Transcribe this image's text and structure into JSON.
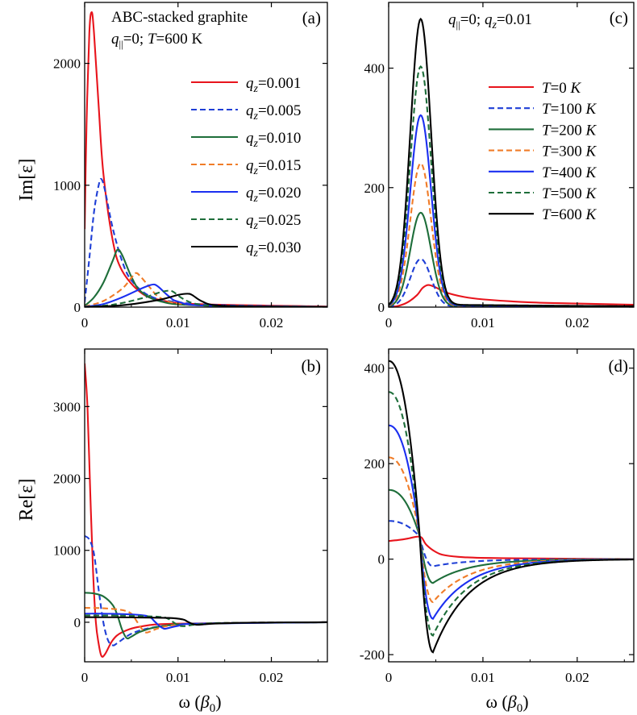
{
  "figure": {
    "xlabel_main": "ω (",
    "xlabel_sym": "β",
    "xlabel_sub": "0",
    "xlabel_close": ")",
    "ylabel_top": "Im[ε]",
    "ylabel_bottom": "Re[ε]"
  },
  "panels": {
    "a": {
      "label": "(a)",
      "title": "ABC-stacked graphite",
      "cond_q": "q",
      "cond_q_sub": "||",
      "cond_rest1": "=0; ",
      "cond_T": "T",
      "cond_rest2": "=600 K",
      "legend_prefix": "q",
      "legend_sub": "z"
    },
    "b": {
      "label": "(b)"
    },
    "c": {
      "label": "(c)",
      "cond_q": "q",
      "cond_q_sub": "||",
      "cond_mid": "=0; ",
      "cond_qz": "q",
      "cond_qz_sub": "z",
      "cond_val": "=0.01",
      "legend_prefix": "T"
    },
    "d": {
      "label": "(d)"
    }
  },
  "chart_data": [
    {
      "panel": "a",
      "type": "line",
      "xlabel": "",
      "ylabel": "Im[ε]",
      "xlim": [
        0,
        0.026
      ],
      "ylim": [
        0,
        2500
      ],
      "xticks": [
        0,
        0.01,
        0.02
      ],
      "xticklabels": [
        "0",
        "0.01",
        "0.02"
      ],
      "yticks": [
        0,
        1000,
        2000
      ],
      "yticklabels": [
        "0",
        "1000",
        "2000"
      ],
      "legend_position": "center-right",
      "series": [
        {
          "name": "=0.001",
          "color": "#e8141c",
          "dash": "solid",
          "points": [
            [
              0,
              640
            ],
            [
              0.0002,
              1500
            ],
            [
              0.0005,
              2250
            ],
            [
              0.00075,
              2420
            ],
            [
              0.001,
              2250
            ],
            [
              0.0015,
              1650
            ],
            [
              0.002,
              1100
            ],
            [
              0.003,
              550
            ],
            [
              0.004,
              300
            ],
            [
              0.006,
              120
            ],
            [
              0.008,
              60
            ],
            [
              0.012,
              25
            ],
            [
              0.026,
              5
            ]
          ]
        },
        {
          "name": "=0.005",
          "color": "#1f3fd6",
          "dash": "dashed",
          "points": [
            [
              0,
              40
            ],
            [
              0.0005,
              400
            ],
            [
              0.001,
              780
            ],
            [
              0.0015,
              1000
            ],
            [
              0.0018,
              1050
            ],
            [
              0.0022,
              950
            ],
            [
              0.003,
              650
            ],
            [
              0.004,
              380
            ],
            [
              0.005,
              220
            ],
            [
              0.007,
              90
            ],
            [
              0.01,
              40
            ],
            [
              0.015,
              15
            ],
            [
              0.026,
              3
            ]
          ]
        },
        {
          "name": "=0.010",
          "color": "#1e6e3a",
          "dash": "solid",
          "points": [
            [
              0,
              10
            ],
            [
              0.001,
              80
            ],
            [
              0.002,
              200
            ],
            [
              0.003,
              380
            ],
            [
              0.0035,
              470
            ],
            [
              0.004,
              430
            ],
            [
              0.005,
              250
            ],
            [
              0.006,
              130
            ],
            [
              0.008,
              50
            ],
            [
              0.012,
              15
            ],
            [
              0.026,
              2
            ]
          ]
        },
        {
          "name": "=0.015",
          "color": "#f07c28",
          "dash": "dashed",
          "points": [
            [
              0,
              5
            ],
            [
              0.002,
              50
            ],
            [
              0.004,
              150
            ],
            [
              0.005,
              240
            ],
            [
              0.0055,
              280
            ],
            [
              0.006,
              250
            ],
            [
              0.007,
              160
            ],
            [
              0.008,
              80
            ],
            [
              0.01,
              30
            ],
            [
              0.015,
              8
            ],
            [
              0.026,
              1
            ]
          ]
        },
        {
          "name": "=0.020",
          "color": "#1b2ff0",
          "dash": "solid",
          "points": [
            [
              0,
              3
            ],
            [
              0.002,
              25
            ],
            [
              0.004,
              80
            ],
            [
              0.006,
              150
            ],
            [
              0.007,
              180
            ],
            [
              0.0075,
              185
            ],
            [
              0.008,
              160
            ],
            [
              0.009,
              90
            ],
            [
              0.01,
              45
            ],
            [
              0.013,
              12
            ],
            [
              0.026,
              1
            ]
          ]
        },
        {
          "name": "=0.025",
          "color": "#1e6e3a",
          "dash": "dashed",
          "points": [
            [
              0,
              2
            ],
            [
              0.003,
              20
            ],
            [
              0.006,
              70
            ],
            [
              0.008,
              120
            ],
            [
              0.009,
              135
            ],
            [
              0.0095,
              125
            ],
            [
              0.0105,
              70
            ],
            [
              0.012,
              25
            ],
            [
              0.015,
              8
            ],
            [
              0.026,
              1
            ]
          ]
        },
        {
          "name": "=0.030",
          "color": "#000000",
          "dash": "solid",
          "points": [
            [
              0,
              1
            ],
            [
              0.004,
              15
            ],
            [
              0.008,
              60
            ],
            [
              0.01,
              100
            ],
            [
              0.011,
              110
            ],
            [
              0.0115,
              100
            ],
            [
              0.0125,
              50
            ],
            [
              0.014,
              15
            ],
            [
              0.018,
              4
            ],
            [
              0.026,
              1
            ]
          ]
        }
      ]
    },
    {
      "panel": "b",
      "type": "line",
      "xlabel": "ω (β0)",
      "ylabel": "Re[ε]",
      "xlim": [
        0,
        0.026
      ],
      "ylim": [
        -550,
        3800
      ],
      "xticks": [
        0,
        0.01,
        0.02
      ],
      "xticklabels": [
        "0",
        "0.01",
        "0.02"
      ],
      "yticks": [
        0,
        1000,
        2000,
        3000
      ],
      "yticklabels": [
        "0",
        "1000",
        "2000",
        "3000"
      ],
      "series": [
        {
          "name": "=0.001",
          "color": "#e8141c",
          "dash": "solid",
          "points": [
            [
              0,
              3600
            ],
            [
              0.0003,
              3000
            ],
            [
              0.0006,
              1800
            ],
            [
              0.0009,
              700
            ],
            [
              0.0012,
              0
            ],
            [
              0.0015,
              -300
            ],
            [
              0.0018,
              -470
            ],
            [
              0.0022,
              -440
            ],
            [
              0.003,
              -250
            ],
            [
              0.004,
              -140
            ],
            [
              0.006,
              -60
            ],
            [
              0.01,
              -20
            ],
            [
              0.026,
              0
            ]
          ]
        },
        {
          "name": "=0.005",
          "color": "#1f3fd6",
          "dash": "dashed",
          "points": [
            [
              0,
              1200
            ],
            [
              0.0005,
              1150
            ],
            [
              0.001,
              950
            ],
            [
              0.0015,
              450
            ],
            [
              0.002,
              0
            ],
            [
              0.0025,
              -250
            ],
            [
              0.003,
              -320
            ],
            [
              0.0035,
              -290
            ],
            [
              0.005,
              -160
            ],
            [
              0.007,
              -80
            ],
            [
              0.01,
              -35
            ],
            [
              0.015,
              -10
            ],
            [
              0.026,
              0
            ]
          ]
        },
        {
          "name": "=0.010",
          "color": "#1e6e3a",
          "dash": "solid",
          "points": [
            [
              0,
              410
            ],
            [
              0.001,
              400
            ],
            [
              0.002,
              360
            ],
            [
              0.003,
              240
            ],
            [
              0.0035,
              100
            ],
            [
              0.004,
              -100
            ],
            [
              0.0045,
              -220
            ],
            [
              0.005,
              -200
            ],
            [
              0.006,
              -130
            ],
            [
              0.008,
              -60
            ],
            [
              0.012,
              -20
            ],
            [
              0.026,
              0
            ]
          ]
        },
        {
          "name": "=0.015",
          "color": "#f07c28",
          "dash": "dashed",
          "points": [
            [
              0,
              200
            ],
            [
              0.002,
              195
            ],
            [
              0.004,
              170
            ],
            [
              0.005,
              120
            ],
            [
              0.0055,
              30
            ],
            [
              0.006,
              -70
            ],
            [
              0.0065,
              -140
            ],
            [
              0.007,
              -130
            ],
            [
              0.008,
              -80
            ],
            [
              0.01,
              -35
            ],
            [
              0.015,
              -10
            ],
            [
              0.026,
              0
            ]
          ]
        },
        {
          "name": "=0.020",
          "color": "#1b2ff0",
          "dash": "solid",
          "points": [
            [
              0,
              120
            ],
            [
              0.003,
              118
            ],
            [
              0.006,
              100
            ],
            [
              0.007,
              70
            ],
            [
              0.0075,
              10
            ],
            [
              0.008,
              -50
            ],
            [
              0.0085,
              -90
            ],
            [
              0.009,
              -80
            ],
            [
              0.01,
              -50
            ],
            [
              0.012,
              -20
            ],
            [
              0.026,
              0
            ]
          ]
        },
        {
          "name": "=0.025",
          "color": "#1e6e3a",
          "dash": "dashed",
          "points": [
            [
              0,
              95
            ],
            [
              0.004,
              92
            ],
            [
              0.008,
              75
            ],
            [
              0.009,
              45
            ],
            [
              0.0095,
              0
            ],
            [
              0.01,
              -40
            ],
            [
              0.0105,
              -55
            ],
            [
              0.011,
              -50
            ],
            [
              0.012,
              -30
            ],
            [
              0.015,
              -10
            ],
            [
              0.026,
              0
            ]
          ]
        },
        {
          "name": "=0.030",
          "color": "#000000",
          "dash": "solid",
          "points": [
            [
              0,
              70
            ],
            [
              0.005,
              68
            ],
            [
              0.009,
              60
            ],
            [
              0.0105,
              40
            ],
            [
              0.011,
              10
            ],
            [
              0.0115,
              -20
            ],
            [
              0.012,
              -35
            ],
            [
              0.0125,
              -32
            ],
            [
              0.014,
              -18
            ],
            [
              0.018,
              -5
            ],
            [
              0.026,
              0
            ]
          ]
        }
      ]
    },
    {
      "panel": "c",
      "type": "line",
      "xlabel": "",
      "ylabel": "",
      "xlim": [
        0,
        0.026
      ],
      "ylim": [
        0,
        510
      ],
      "xticks": [
        0,
        0.01,
        0.02
      ],
      "xticklabels": [
        "0",
        "0.01",
        "0.02"
      ],
      "yticks": [
        0,
        200,
        400
      ],
      "yticklabels": [
        "0",
        "200",
        "400"
      ],
      "legend_position": "center-right",
      "series": [
        {
          "name": "=0 K",
          "color": "#e8141c",
          "dash": "solid",
          "peak": 37,
          "peak_x": 0.0042,
          "points": [
            [
              0,
              0
            ],
            [
              0.001,
              2
            ],
            [
              0.002,
              8
            ],
            [
              0.003,
              20
            ],
            [
              0.0036,
              32
            ],
            [
              0.0042,
              37
            ],
            [
              0.005,
              33
            ],
            [
              0.006,
              25
            ],
            [
              0.008,
              17
            ],
            [
              0.01,
              13
            ],
            [
              0.015,
              8
            ],
            [
              0.02,
              6
            ],
            [
              0.026,
              4
            ]
          ]
        },
        {
          "name": "=100 K",
          "color": "#1f3fd6",
          "dash": "dashed",
          "peak": 80
        },
        {
          "name": "=200 K",
          "color": "#1e6e3a",
          "dash": "solid",
          "peak": 157
        },
        {
          "name": "=300 K",
          "color": "#f07c28",
          "dash": "dashed",
          "peak": 239
        },
        {
          "name": "=400 K",
          "color": "#1b2ff0",
          "dash": "solid",
          "peak": 319
        },
        {
          "name": "=500 K",
          "color": "#1e6e3a",
          "dash": "dashed",
          "peak": 400
        },
        {
          "name": "=600 K",
          "color": "#000000",
          "dash": "solid",
          "peak": 479
        }
      ]
    },
    {
      "panel": "d",
      "type": "line",
      "xlabel": "ω (β0)",
      "ylabel": "",
      "xlim": [
        0,
        0.026
      ],
      "ylim": [
        -215,
        440
      ],
      "xticks": [
        0,
        0.01,
        0.02
      ],
      "xticklabels": [
        "0",
        "0.01",
        "0.02"
      ],
      "yticks": [
        -200,
        0,
        200,
        400
      ],
      "yticklabels": [
        "-200",
        "0",
        "200",
        "400"
      ],
      "series": [
        {
          "name": "=0 K",
          "color": "#e8141c",
          "dash": "solid",
          "points": [
            [
              0,
              38
            ],
            [
              0.001,
              40
            ],
            [
              0.002,
              43
            ],
            [
              0.003,
              47
            ],
            [
              0.0035,
              45
            ],
            [
              0.004,
              30
            ],
            [
              0.005,
              15
            ],
            [
              0.006,
              8
            ],
            [
              0.008,
              4
            ],
            [
              0.012,
              2
            ],
            [
              0.026,
              0
            ]
          ]
        },
        {
          "name": "=100 K",
          "color": "#1f3fd6",
          "dash": "dashed",
          "start": 80,
          "trough": -15
        },
        {
          "name": "=200 K",
          "color": "#1e6e3a",
          "dash": "solid",
          "start": 145,
          "trough": -50
        },
        {
          "name": "=300 K",
          "color": "#f07c28",
          "dash": "dashed",
          "start": 213,
          "trough": -90
        },
        {
          "name": "=400 K",
          "color": "#1b2ff0",
          "dash": "solid",
          "start": 280,
          "trough": -125
        },
        {
          "name": "=500 K",
          "color": "#1e6e3a",
          "dash": "dashed",
          "start": 350,
          "trough": -160
        },
        {
          "name": "=600 K",
          "color": "#000000",
          "dash": "solid",
          "start": 415,
          "trough": -195
        }
      ]
    }
  ]
}
